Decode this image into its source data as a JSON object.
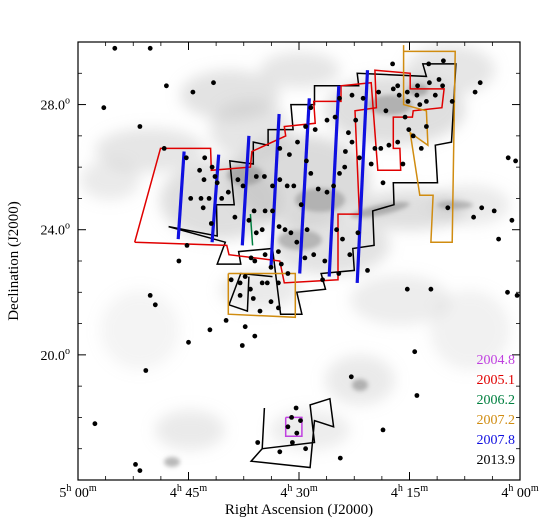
{
  "chart_data": {
    "type": "scatter",
    "title": "",
    "xlabel": "Right Ascension (J2000)",
    "ylabel": "Declination (J2000)",
    "x_unit": "hours",
    "y_unit": "degrees",
    "xlim": [
      300,
      240
    ],
    "ylim": [
      16,
      30
    ],
    "x_reversed": true,
    "grid": false,
    "background": "grayscale dust extinction map",
    "x_ticks": [
      {
        "value": 300,
        "h": "5",
        "m": "00"
      },
      {
        "value": 285,
        "h": "4",
        "m": "45"
      },
      {
        "value": 270,
        "h": "4",
        "m": "30"
      },
      {
        "value": 255,
        "h": "4",
        "m": "15"
      },
      {
        "value": 240,
        "h": "4",
        "m": "00"
      }
    ],
    "y_ticks": [
      {
        "value": 20,
        "label": "20.0"
      },
      {
        "value": 24,
        "label": "24.0"
      },
      {
        "value": 28,
        "label": "28.0"
      }
    ],
    "degree_symbol": "o",
    "legend": {
      "placement": "bottom-right",
      "entries": [
        {
          "label": "2004.8",
          "color": "#c040e0"
        },
        {
          "label": "2005.1",
          "color": "#e00000"
        },
        {
          "label": "2006.2",
          "color": "#008040"
        },
        {
          "label": "2007.2",
          "color": "#d08c10"
        },
        {
          "label": "2007.8",
          "color": "#1010e0"
        },
        {
          "label": "2013.9",
          "color": "#000000"
        }
      ]
    },
    "survey_outlines": [
      {
        "epoch": "2013.9",
        "color": "#000000",
        "points": [
          [
            287.7,
            24.1
          ],
          [
            281.1,
            23.8
          ],
          [
            281.2,
            24.8
          ],
          [
            278.8,
            24.8
          ],
          [
            279.4,
            26.2
          ],
          [
            276.2,
            26.1
          ],
          [
            276.2,
            26.8
          ],
          [
            274.2,
            26.7
          ],
          [
            274.2,
            27.2
          ],
          [
            270.8,
            27.2
          ],
          [
            271.1,
            28.0
          ],
          [
            267.9,
            28.0
          ],
          [
            267.9,
            28.6
          ],
          [
            261.9,
            28.6
          ],
          [
            262.1,
            29.0
          ],
          [
            252.7,
            28.9
          ],
          [
            253.2,
            29.3
          ],
          [
            248.7,
            29.3
          ],
          [
            249.3,
            26.8
          ],
          [
            251.5,
            26.7
          ],
          [
            251.2,
            25.5
          ],
          [
            257.2,
            25.5
          ],
          [
            257.1,
            24.8
          ],
          [
            260.0,
            24.6
          ],
          [
            259.8,
            23.5
          ],
          [
            262.7,
            23.4
          ],
          [
            262.5,
            22.7
          ],
          [
            267.0,
            22.6
          ],
          [
            266.4,
            22.1
          ],
          [
            270.3,
            22.0
          ],
          [
            269.6,
            21.3
          ],
          [
            272.5,
            21.3
          ],
          [
            273.6,
            23.4
          ],
          [
            278.2,
            23.3
          ],
          [
            277.9,
            22.9
          ],
          [
            281.1,
            22.9
          ],
          [
            280.0,
            23.6
          ],
          [
            287.7,
            24.1
          ]
        ]
      },
      {
        "epoch": "2013.9",
        "color": "#000000",
        "points": [
          [
            273.6,
            22.5
          ],
          [
            277.9,
            22.6
          ],
          [
            279.5,
            21.6
          ],
          [
            277.0,
            21.4
          ],
          [
            276.8,
            22.5
          ]
        ]
      },
      {
        "epoch": "2013.9",
        "color": "#000000",
        "points": [
          [
            275.0,
            17.0
          ],
          [
            276.5,
            16.6
          ],
          [
            268.5,
            16.4
          ],
          [
            267.9,
            17.9
          ],
          [
            265.3,
            17.7
          ],
          [
            265.8,
            18.6
          ],
          [
            268.5,
            18.4
          ],
          [
            267.9,
            17.2
          ],
          [
            275.0,
            17.0
          ],
          [
            274.7,
            18.3
          ]
        ]
      },
      {
        "epoch": "2005.1",
        "color": "#e00000",
        "points": [
          [
            292.3,
            23.6
          ],
          [
            279.8,
            23.5
          ],
          [
            279.5,
            23.2
          ],
          [
            272.6,
            23.0
          ],
          [
            272.0,
            22.3
          ],
          [
            264.7,
            22.4
          ],
          [
            264.7,
            24.5
          ],
          [
            261.8,
            24.5
          ],
          [
            262.4,
            27.8
          ],
          [
            259.5,
            27.9
          ],
          [
            259.7,
            29.1
          ],
          [
            254.9,
            29.0
          ],
          [
            254.9,
            28.5
          ],
          [
            250.3,
            28.5
          ],
          [
            250.6,
            27.9
          ],
          [
            254.5,
            27.8
          ],
          [
            254.6,
            27.6
          ],
          [
            257.2,
            27.6
          ],
          [
            257.2,
            26.6
          ],
          [
            256.3,
            26.6
          ],
          [
            256.2,
            25.9
          ],
          [
            259.3,
            25.9
          ],
          [
            260.2,
            28.7
          ],
          [
            264.3,
            28.6
          ],
          [
            264.3,
            28.1
          ],
          [
            268.0,
            28.1
          ],
          [
            267.8,
            27.4
          ],
          [
            272.0,
            27.3
          ],
          [
            271.8,
            27.0
          ],
          [
            276.4,
            26.5
          ],
          [
            276.6,
            26.0
          ],
          [
            281.9,
            25.9
          ],
          [
            282.0,
            26.6
          ],
          [
            288.8,
            26.6
          ],
          [
            292.3,
            23.6
          ]
        ]
      },
      {
        "epoch": "2007.2",
        "color": "#d08c10",
        "points": [
          [
            255.8,
            29.9
          ],
          [
            255.8,
            29.7
          ],
          [
            248.8,
            29.7
          ],
          [
            249.2,
            23.6
          ],
          [
            252.1,
            23.6
          ],
          [
            251.8,
            25.1
          ],
          [
            253.6,
            25.1
          ],
          [
            254.9,
            27.1
          ],
          [
            252.5,
            26.7
          ],
          [
            252.7,
            27.8
          ],
          [
            255.8,
            28.0
          ],
          [
            255.8,
            29.9
          ]
        ]
      },
      {
        "epoch": "2007.2",
        "color": "#d08c10",
        "points": [
          [
            279.6,
            22.6
          ],
          [
            270.5,
            22.6
          ],
          [
            270.5,
            21.2
          ],
          [
            279.6,
            21.3
          ],
          [
            279.6,
            22.6
          ]
        ]
      },
      {
        "epoch": "2006.2",
        "color": "#008040",
        "points": [
          [
            276.3,
            23.5
          ],
          [
            276.6,
            24.5
          ]
        ]
      },
      {
        "epoch": "2004.8",
        "color": "#c040e0",
        "points": [
          [
            271.8,
            18.0
          ],
          [
            269.6,
            18.0
          ],
          [
            269.6,
            17.4
          ],
          [
            271.8,
            17.4
          ],
          [
            271.8,
            18.0
          ]
        ]
      }
    ],
    "survey_strips": {
      "epoch": "2007.8",
      "color": "#1010e0",
      "segments": [
        [
          [
            285.6,
            26.5
          ],
          [
            286.4,
            23.7
          ]
        ],
        [
          [
            280.9,
            26.4
          ],
          [
            281.8,
            23.6
          ]
        ],
        [
          [
            276.8,
            27.0
          ],
          [
            277.7,
            23.5
          ]
        ],
        [
          [
            272.7,
            27.7
          ],
          [
            273.8,
            22.8
          ]
        ],
        [
          [
            268.6,
            28.2
          ],
          [
            269.9,
            22.6
          ]
        ],
        [
          [
            264.6,
            28.6
          ],
          [
            265.9,
            22.5
          ]
        ],
        [
          [
            260.7,
            29.1
          ],
          [
            262.1,
            22.3
          ]
        ]
      ]
    },
    "stars": [
      [
        291.6,
        27.3
      ],
      [
        290.2,
        29.8
      ],
      [
        295.0,
        29.8
      ],
      [
        296.5,
        27.9
      ],
      [
        288.0,
        28.6
      ],
      [
        284.4,
        28.4
      ],
      [
        281.6,
        28.7
      ],
      [
        288.3,
        26.6
      ],
      [
        285.3,
        26.3
      ],
      [
        283.5,
        25.9
      ],
      [
        282.9,
        25.6
      ],
      [
        284.7,
        25.0
      ],
      [
        283.3,
        25.0
      ],
      [
        283.0,
        24.7
      ],
      [
        281.9,
        24.2
      ],
      [
        282.2,
        25.0
      ],
      [
        282.8,
        26.3
      ],
      [
        281.8,
        26.0
      ],
      [
        281.4,
        25.7
      ],
      [
        281.1,
        25.5
      ],
      [
        280.5,
        25.0
      ],
      [
        279.6,
        25.2
      ],
      [
        278.3,
        25.6
      ],
      [
        277.6,
        25.4
      ],
      [
        278.7,
        24.4
      ],
      [
        276.8,
        24.3
      ],
      [
        276.1,
        24.6
      ],
      [
        274.6,
        24.6
      ],
      [
        273.6,
        24.6
      ],
      [
        272.7,
        24.1
      ],
      [
        271.9,
        24.0
      ],
      [
        271.1,
        23.9
      ],
      [
        270.3,
        23.6
      ],
      [
        272.8,
        23.3
      ],
      [
        274.6,
        23.2
      ],
      [
        275.8,
        23.9
      ],
      [
        276.0,
        23.0
      ],
      [
        273.8,
        22.8
      ],
      [
        272.4,
        22.9
      ],
      [
        271.5,
        22.6
      ],
      [
        275.0,
        22.3
      ],
      [
        274.3,
        22.3
      ],
      [
        272.8,
        22.3
      ],
      [
        277.3,
        22.5
      ],
      [
        278.0,
        22.3
      ],
      [
        279.2,
        22.4
      ],
      [
        278.0,
        21.9
      ],
      [
        276.6,
        22.1
      ],
      [
        276.2,
        21.8
      ],
      [
        275.3,
        21.4
      ],
      [
        272.8,
        21.5
      ],
      [
        273.8,
        21.7
      ],
      [
        275.0,
        24.0
      ],
      [
        276.5,
        23.1
      ],
      [
        269.7,
        24.8
      ],
      [
        270.7,
        25.4
      ],
      [
        271.6,
        25.4
      ],
      [
        272.6,
        25.6
      ],
      [
        273.6,
        25.4
      ],
      [
        274.7,
        25.7
      ],
      [
        275.8,
        25.7
      ],
      [
        269.0,
        26.2
      ],
      [
        268.4,
        25.8
      ],
      [
        267.4,
        25.3
      ],
      [
        266.2,
        25.2
      ],
      [
        265.3,
        25.4
      ],
      [
        264.5,
        25.8
      ],
      [
        263.8,
        26.0
      ],
      [
        263.7,
        26.5
      ],
      [
        262.8,
        26.8
      ],
      [
        261.8,
        26.3
      ],
      [
        260.2,
        26.1
      ],
      [
        259.7,
        26.6
      ],
      [
        258.9,
        26.6
      ],
      [
        267.8,
        27.2
      ],
      [
        268.4,
        27.9
      ],
      [
        269.1,
        27.3
      ],
      [
        270.2,
        26.8
      ],
      [
        271.3,
        26.4
      ],
      [
        272.6,
        26.6
      ],
      [
        265.1,
        27.6
      ],
      [
        266.2,
        27.5
      ],
      [
        264.5,
        28.2
      ],
      [
        262.8,
        28.3
      ],
      [
        261.3,
        28.2
      ],
      [
        262.3,
        27.5
      ],
      [
        263.3,
        27.1
      ],
      [
        259.2,
        28.4
      ],
      [
        257.2,
        28.5
      ],
      [
        256.4,
        28.3
      ],
      [
        255.2,
        28.1
      ],
      [
        254.0,
        28.3
      ],
      [
        253.6,
        28.0
      ],
      [
        252.7,
        28.1
      ],
      [
        251.5,
        28.3
      ],
      [
        250.5,
        28.6
      ],
      [
        251.0,
        28.8
      ],
      [
        252.3,
        28.7
      ],
      [
        253.9,
        28.6
      ],
      [
        255.3,
        28.4
      ],
      [
        256.6,
        28.6
      ],
      [
        255.6,
        27.6
      ],
      [
        255.1,
        27.2
      ],
      [
        254.5,
        27.0
      ],
      [
        256.6,
        26.8
      ],
      [
        257.8,
        26.7
      ],
      [
        258.2,
        27.8
      ],
      [
        257.3,
        29.3
      ],
      [
        252.4,
        29.3
      ],
      [
        250.4,
        29.4
      ],
      [
        249.2,
        28.1
      ],
      [
        252.7,
        27.3
      ],
      [
        253.4,
        26.6
      ],
      [
        255.9,
        26.1
      ],
      [
        258.6,
        25.5
      ],
      [
        268.0,
        23.2
      ],
      [
        266.5,
        23.0
      ],
      [
        264.1,
        23.7
      ],
      [
        263.1,
        23.2
      ],
      [
        262.0,
        23.9
      ],
      [
        264.9,
        24.0
      ],
      [
        268.9,
        24.0
      ],
      [
        269.2,
        23.1
      ],
      [
        266.8,
        22.4
      ],
      [
        264.6,
        22.6
      ],
      [
        285.2,
        23.5
      ],
      [
        286.3,
        23.0
      ],
      [
        279.9,
        21.1
      ],
      [
        277.3,
        20.9
      ],
      [
        276.0,
        20.6
      ],
      [
        277.7,
        20.3
      ],
      [
        282.1,
        20.8
      ],
      [
        289.5,
        21.6
      ],
      [
        290.2,
        21.9
      ],
      [
        285.0,
        20.4
      ],
      [
        290.8,
        19.5
      ],
      [
        297.7,
        17.8
      ],
      [
        270.4,
        18.3
      ],
      [
        271.0,
        18.0
      ],
      [
        271.5,
        17.7
      ],
      [
        270.3,
        17.5
      ],
      [
        269.8,
        17.9
      ],
      [
        270.9,
        17.2
      ],
      [
        272.6,
        16.9
      ],
      [
        275.6,
        17.2
      ],
      [
        269.1,
        17.0
      ],
      [
        264.4,
        16.7
      ],
      [
        262.9,
        19.3
      ],
      [
        258.6,
        17.6
      ],
      [
        254.0,
        18.7
      ],
      [
        292.2,
        16.5
      ],
      [
        291.6,
        16.3
      ],
      [
        260.7,
        22.7
      ],
      [
        255.3,
        22.1
      ],
      [
        252.1,
        22.1
      ],
      [
        254.3,
        20.1
      ],
      [
        249.8,
        24.7
      ],
      [
        246.3,
        24.4
      ],
      [
        245.2,
        24.7
      ],
      [
        243.5,
        24.6
      ],
      [
        241.1,
        24.3
      ],
      [
        242.9,
        23.7
      ],
      [
        241.7,
        22.0
      ],
      [
        240.4,
        21.9
      ],
      [
        241.6,
        26.3
      ],
      [
        240.6,
        26.2
      ],
      [
        246.1,
        28.4
      ],
      [
        245.4,
        28.7
      ]
    ]
  }
}
